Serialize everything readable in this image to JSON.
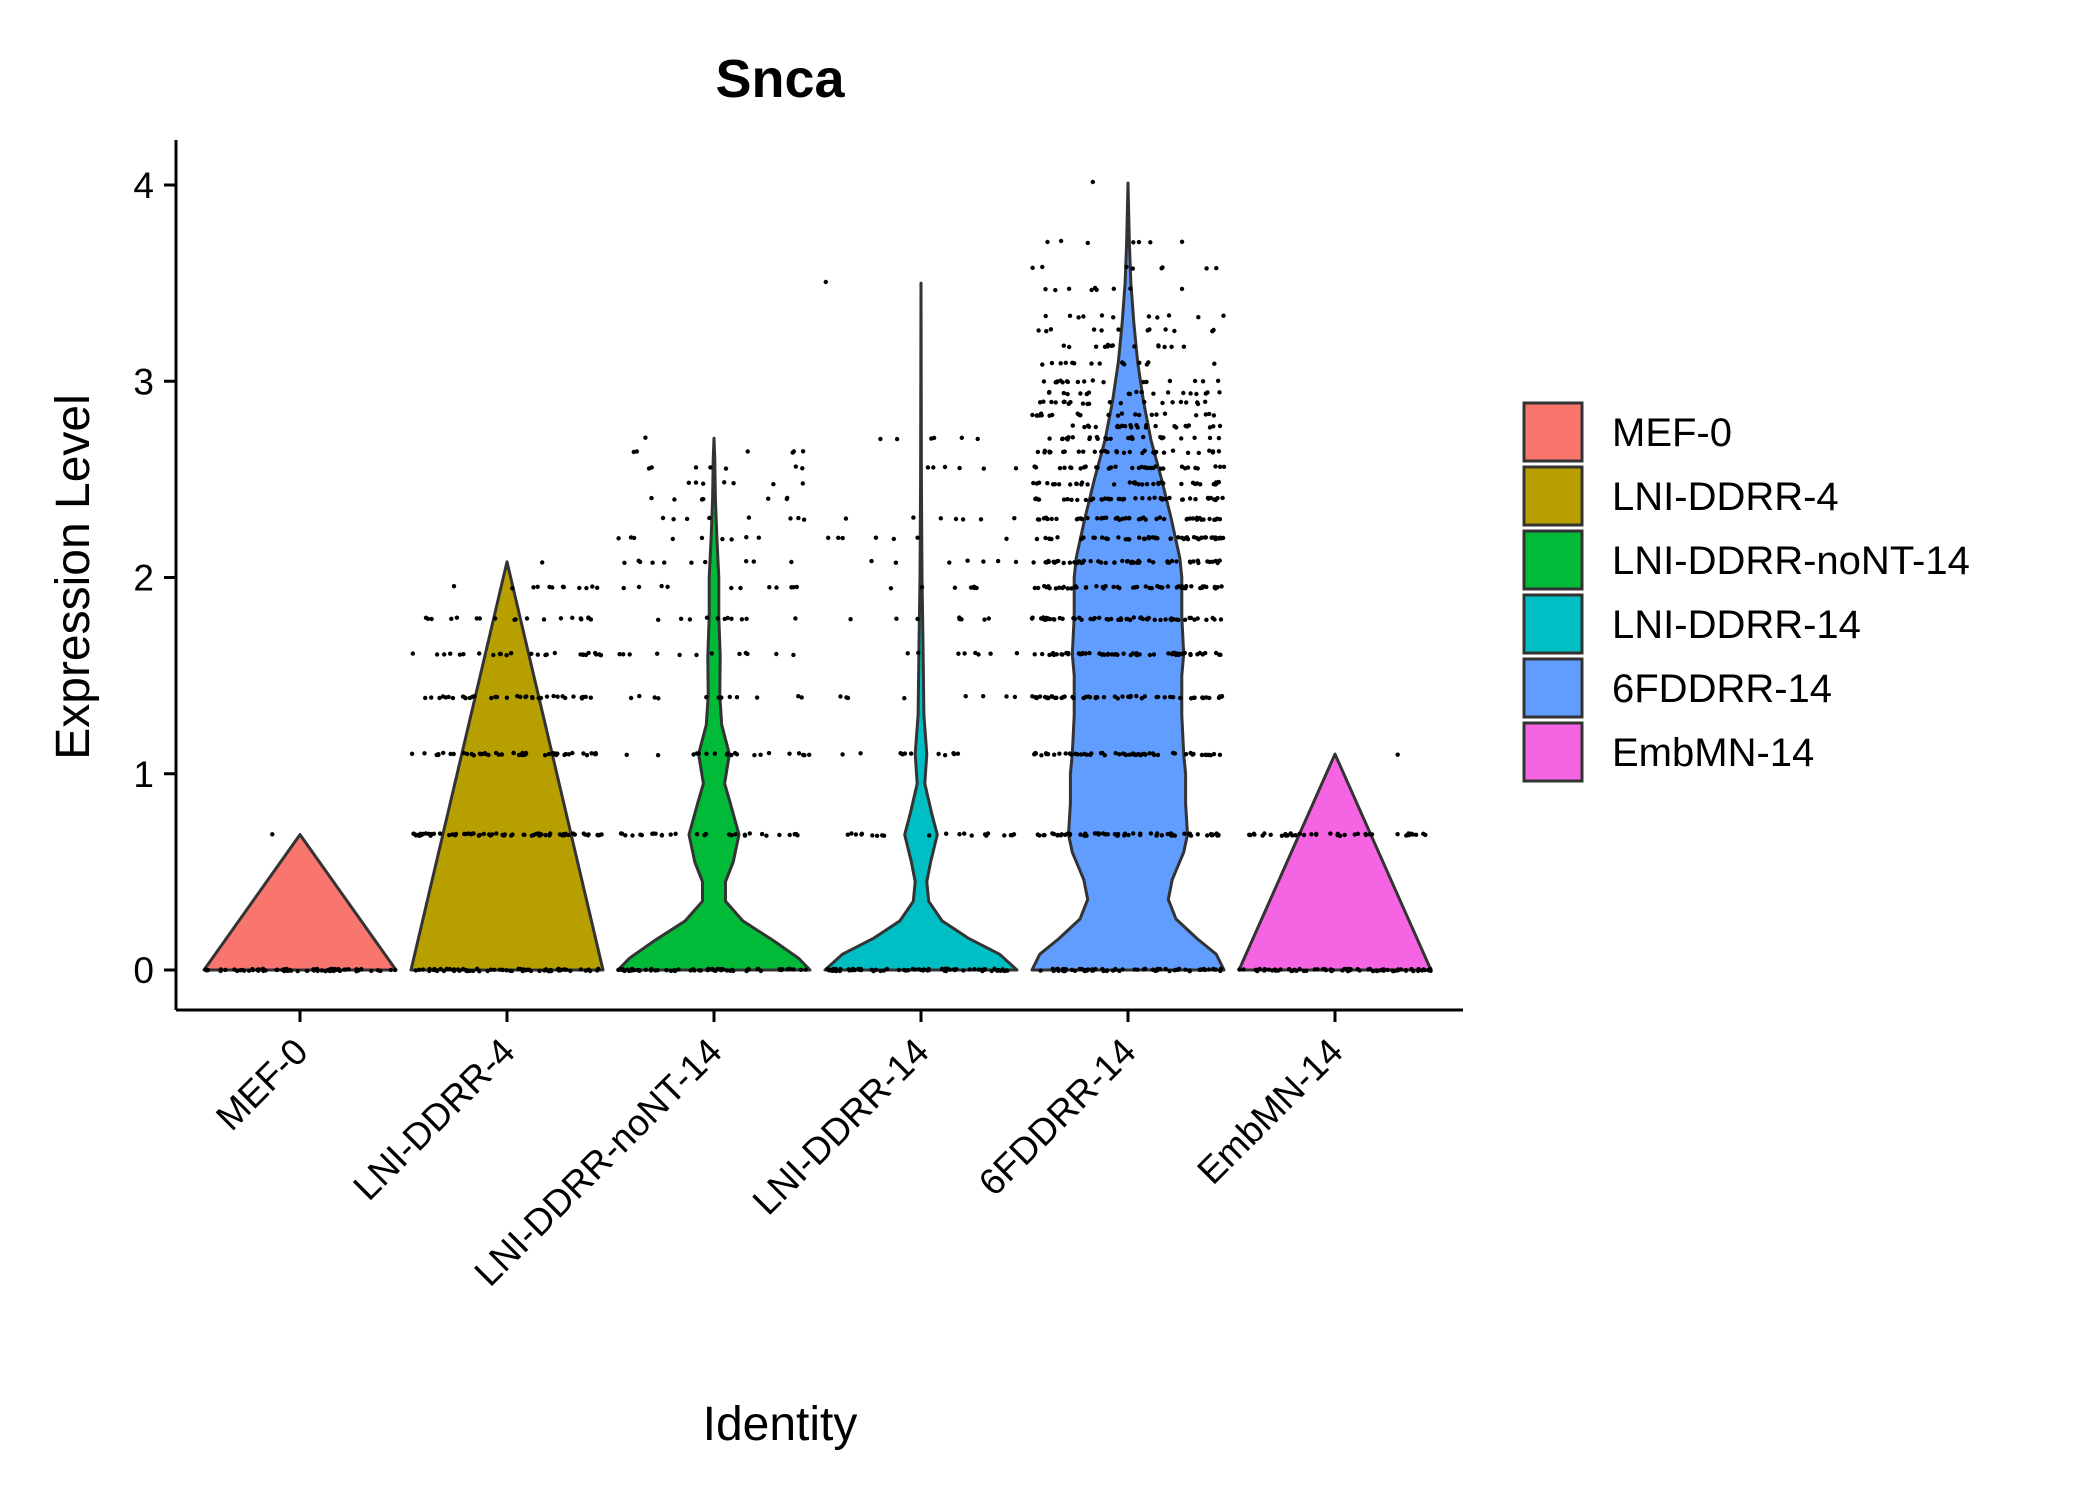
{
  "chart_data": {
    "type": "violin",
    "title": "Snca",
    "xlabel": "Identity",
    "ylabel": "Expression Level",
    "ylim": [
      -0.2,
      4.2
    ],
    "yticks": [
      0,
      1,
      2,
      3,
      4
    ],
    "grid": false,
    "legend_position": "right",
    "categories": [
      "MEF-0",
      "LNI-DDRR-4",
      "LNI-DDRR-noNT-14",
      "LNI-DDRR-14",
      "6FDDRR-14",
      "EmbMN-14"
    ],
    "series": [
      {
        "name": "MEF-0",
        "color": "#F8766D",
        "max": 0.69,
        "levels": [
          0,
          0.69
        ],
        "density": [
          [
            0,
            1.0
          ],
          [
            0.69,
            0.0
          ]
        ]
      },
      {
        "name": "LNI-DDRR-4",
        "color": "#B79F00",
        "max": 2.08,
        "levels": [
          0,
          0.69,
          1.1,
          1.39,
          1.61,
          1.79,
          1.95,
          2.08
        ],
        "density": [
          [
            0,
            1.0
          ],
          [
            2.08,
            0.0
          ]
        ]
      },
      {
        "name": "LNI-DDRR-noNT-14",
        "color": "#00BA38",
        "max": 2.71,
        "levels": [
          0,
          0.69,
          1.1,
          1.39,
          1.61,
          1.79,
          1.95,
          2.08,
          2.2,
          2.3,
          2.4,
          2.48,
          2.56,
          2.64,
          2.71
        ],
        "density": [
          [
            0,
            1.0
          ],
          [
            0.06,
            0.88
          ],
          [
            0.15,
            0.62
          ],
          [
            0.25,
            0.3
          ],
          [
            0.35,
            0.12
          ],
          [
            0.45,
            0.12
          ],
          [
            0.55,
            0.2
          ],
          [
            0.69,
            0.26
          ],
          [
            0.85,
            0.17
          ],
          [
            0.95,
            0.11
          ],
          [
            1.1,
            0.16
          ],
          [
            1.25,
            0.08
          ],
          [
            1.4,
            0.06
          ],
          [
            1.6,
            0.065
          ],
          [
            1.8,
            0.05
          ],
          [
            2.0,
            0.05
          ],
          [
            2.2,
            0.03
          ],
          [
            2.4,
            0.015
          ],
          [
            2.6,
            0.008
          ],
          [
            2.71,
            0.0
          ]
        ]
      },
      {
        "name": "LNI-DDRR-14",
        "color": "#00BFC4",
        "max": 3.5,
        "levels": [
          0,
          0.69,
          1.1,
          1.39,
          1.61,
          1.79,
          1.95,
          2.08,
          2.2,
          2.3,
          2.56,
          2.71,
          3.5
        ],
        "density": [
          [
            0,
            1.0
          ],
          [
            0.08,
            0.82
          ],
          [
            0.16,
            0.5
          ],
          [
            0.25,
            0.22
          ],
          [
            0.35,
            0.08
          ],
          [
            0.45,
            0.06
          ],
          [
            0.55,
            0.1
          ],
          [
            0.69,
            0.17
          ],
          [
            0.8,
            0.11
          ],
          [
            0.95,
            0.04
          ],
          [
            1.1,
            0.06
          ],
          [
            1.3,
            0.03
          ],
          [
            1.5,
            0.025
          ],
          [
            1.7,
            0.02
          ],
          [
            2.0,
            0.01
          ],
          [
            2.5,
            0.004
          ],
          [
            3.5,
            0.0
          ]
        ]
      },
      {
        "name": "6FDDRR-14",
        "color": "#619CFF",
        "max": 4.01,
        "levels": [
          0,
          0.69,
          1.1,
          1.39,
          1.61,
          1.79,
          1.95,
          2.08,
          2.2,
          2.3,
          2.4,
          2.48,
          2.56,
          2.64,
          2.71,
          2.77,
          2.83,
          2.89,
          2.94,
          3.0,
          3.09,
          3.18,
          3.26,
          3.33,
          3.47,
          3.58,
          3.71,
          4.01
        ],
        "density": [
          [
            0,
            1.0
          ],
          [
            0.08,
            0.92
          ],
          [
            0.16,
            0.72
          ],
          [
            0.26,
            0.5
          ],
          [
            0.36,
            0.42
          ],
          [
            0.46,
            0.46
          ],
          [
            0.6,
            0.58
          ],
          [
            0.69,
            0.62
          ],
          [
            0.85,
            0.6
          ],
          [
            1.0,
            0.6
          ],
          [
            1.1,
            0.58
          ],
          [
            1.3,
            0.56
          ],
          [
            1.5,
            0.56
          ],
          [
            1.61,
            0.58
          ],
          [
            1.8,
            0.56
          ],
          [
            2.0,
            0.56
          ],
          [
            2.1,
            0.54
          ],
          [
            2.3,
            0.45
          ],
          [
            2.5,
            0.35
          ],
          [
            2.7,
            0.24
          ],
          [
            2.9,
            0.16
          ],
          [
            3.1,
            0.1
          ],
          [
            3.3,
            0.06
          ],
          [
            3.5,
            0.03
          ],
          [
            3.7,
            0.015
          ],
          [
            4.01,
            0.0
          ]
        ]
      },
      {
        "name": "EmbMN-14",
        "color": "#F564E3",
        "max": 1.1,
        "levels": [
          0,
          0.69,
          1.1
        ],
        "density": [
          [
            0,
            1.0
          ],
          [
            1.1,
            0.0
          ]
        ]
      }
    ]
  }
}
